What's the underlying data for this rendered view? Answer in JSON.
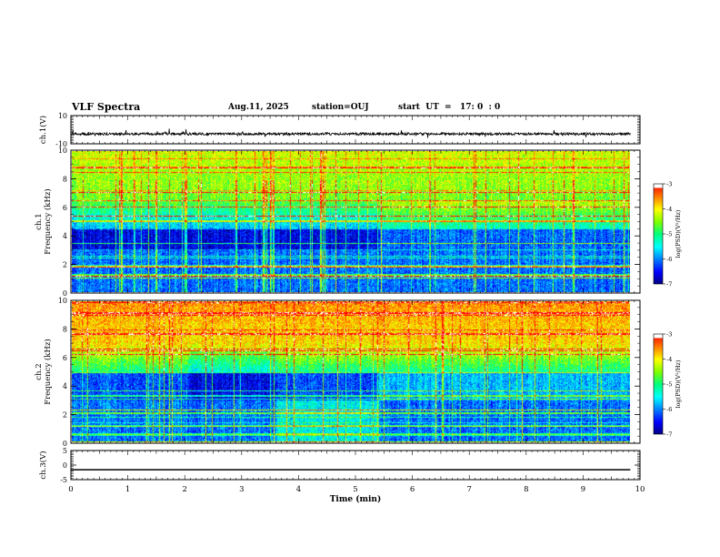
{
  "header": {
    "title": "VLF Spectra",
    "date": "Aug.11, 2025",
    "station": "station=OUJ",
    "start": "start  UT  =   17: 0  : 0"
  },
  "colors": {
    "colormap": [
      "#00007f",
      "#0000ff",
      "#007fff",
      "#00ffff",
      "#00ff7f",
      "#7fff00",
      "#ffff00",
      "#ff7f00",
      "#ff0000",
      "#ffffff"
    ]
  },
  "chart_data": [
    {
      "type": "line",
      "name": "ch1-waveform",
      "ylabel": "ch.1(V)",
      "ylim": [
        -10,
        10
      ],
      "yticks": [
        "10",
        "-10"
      ],
      "baseline": -3,
      "xlim": [
        0,
        10
      ]
    },
    {
      "type": "heatmap",
      "name": "ch1-spectrogram",
      "ylabel_line1": "ch.1",
      "ylabel_line2": "Frequency (kHz)",
      "ylim": [
        0,
        10
      ],
      "yticks": [
        "0",
        "2",
        "4",
        "6",
        "8",
        "10"
      ],
      "xlim": [
        0,
        9.83
      ],
      "colorbar": {
        "label": "log(PSD)(V²/Hz)",
        "ticks": [
          "-3",
          "-4",
          "-5",
          "-6",
          "-7"
        ],
        "range": [
          -7,
          -3
        ]
      }
    },
    {
      "type": "heatmap",
      "name": "ch2-spectrogram",
      "ylabel_line1": "ch.2",
      "ylabel_line2": "Frequency (kHz)",
      "ylim": [
        0,
        10
      ],
      "yticks": [
        "0",
        "2",
        "4",
        "6",
        "8",
        "10"
      ],
      "xlim": [
        0,
        9.83
      ],
      "colorbar": {
        "label": "log(PSD)(V²/Hz)",
        "ticks": [
          "-3",
          "-4",
          "-5",
          "-6",
          "-7"
        ],
        "range": [
          -7,
          -3
        ]
      }
    },
    {
      "type": "line",
      "name": "ch3-waveform",
      "ylabel": "ch.3(V)",
      "ylim": [
        -5,
        5
      ],
      "yticks": [
        "5",
        "0",
        "-5"
      ],
      "baseline": -1.6,
      "xlim": [
        0,
        10
      ]
    }
  ],
  "xaxis": {
    "label": "Time (min)",
    "ticks": [
      "0",
      "1",
      "2",
      "3",
      "4",
      "5",
      "6",
      "7",
      "8",
      "9",
      "10"
    ]
  }
}
